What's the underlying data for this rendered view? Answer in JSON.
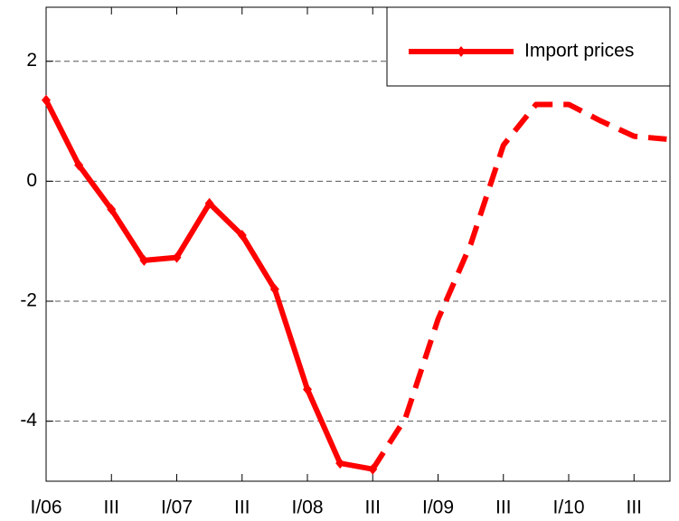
{
  "chart_data": {
    "type": "line",
    "categories": [
      "I/06",
      null,
      "III",
      null,
      "I/07",
      null,
      "III",
      null,
      "I/08",
      null,
      "III",
      null,
      "I/09",
      null,
      "III",
      null,
      "I/10",
      null,
      "III",
      null
    ],
    "series": [
      {
        "name": "Import prices",
        "color": "#ff0000",
        "values": [
          1.35,
          0.27,
          -0.47,
          -1.32,
          -1.27,
          -0.37,
          -0.9,
          -1.8,
          -3.47,
          -4.7,
          -4.8,
          -3.95,
          -2.3,
          -1.05,
          0.6,
          1.28,
          1.28,
          1.0,
          0.75,
          0.7
        ]
      }
    ],
    "forecast_start": 10,
    "ylim": [
      -5,
      2.9
    ],
    "yticks": [
      -4,
      -2,
      0,
      2
    ],
    "grid": true,
    "legend": "top-right"
  }
}
